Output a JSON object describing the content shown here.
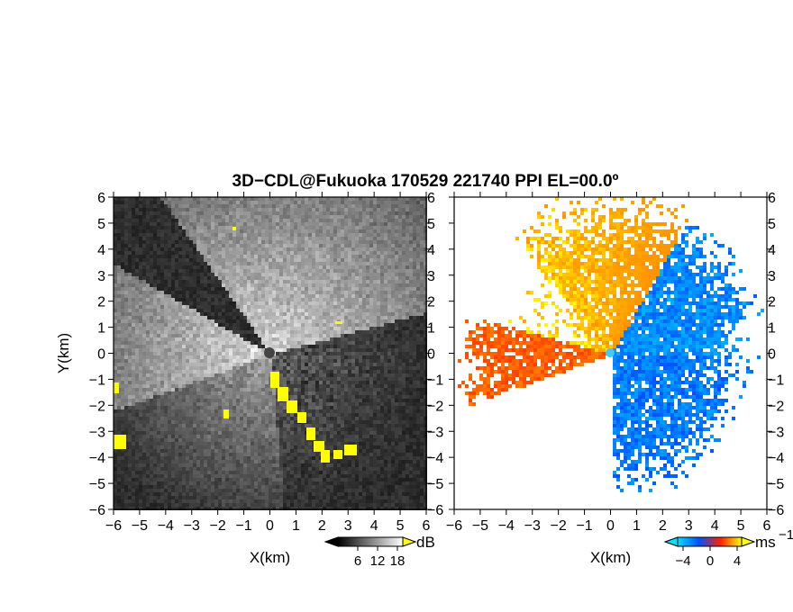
{
  "chart_data": {
    "title": "3D−CDL@Fukuoka 170529 221740 PPI EL=00.0º",
    "panels": [
      {
        "type": "heatmap",
        "name": "reflectivity",
        "xlabel": "X(km)",
        "ylabel": "Y(km)",
        "xlim": [
          -6,
          6
        ],
        "ylim": [
          -6,
          6
        ],
        "xticks": [
          "−6",
          "−5",
          "−4",
          "−3",
          "−2",
          "−1",
          "0",
          "1",
          "2",
          "3",
          "4",
          "5",
          "6"
        ],
        "yticks": [
          "6",
          "5",
          "4",
          "3",
          "2",
          "1",
          "0",
          "−1",
          "−2",
          "−3",
          "−4",
          "−5",
          "−6"
        ],
        "colorbar": {
          "unit": "dB",
          "ticks": [
            "6",
            "12",
            "18"
          ],
          "range": [
            0,
            24
          ],
          "colors": [
            "#000000",
            "#ffffff"
          ],
          "overflow_color": "#ffff00"
        }
      },
      {
        "type": "heatmap",
        "name": "doppler_velocity",
        "xlabel": "X(km)",
        "ylabel": "",
        "xlim": [
          -6,
          6
        ],
        "ylim": [
          -6,
          6
        ],
        "xticks": [
          "−6",
          "−5",
          "−4",
          "−3",
          "−2",
          "−1",
          "0",
          "1",
          "2",
          "3",
          "4",
          "5",
          "6"
        ],
        "yticks": [
          "6",
          "5",
          "4",
          "3",
          "2",
          "1",
          "0",
          "−1",
          "−2",
          "−3",
          "−4",
          "−5",
          "−6"
        ],
        "colorbar": {
          "unit": "ms",
          "unit_exp": "−1",
          "ticks": [
            "−4",
            "0",
            "4"
          ],
          "range": [
            -6,
            6
          ],
          "colors": [
            "#00e0ff",
            "#0050ff",
            "#ff2000",
            "#ffff00"
          ]
        }
      }
    ]
  }
}
